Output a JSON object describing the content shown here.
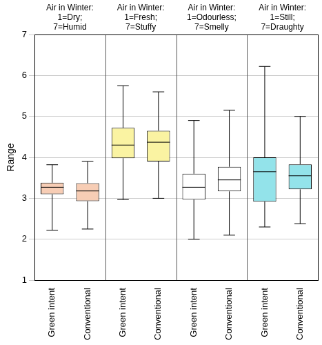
{
  "chart_data": {
    "type": "boxplot",
    "y_label": "Range",
    "ylim": [
      1,
      7
    ],
    "yticks": [
      1,
      2,
      3,
      4,
      5,
      6,
      7
    ],
    "grid": true,
    "categories": [
      "Green intent",
      "Conventional",
      "Green intent",
      "Conventional",
      "Green intent",
      "Conventional",
      "Green intent",
      "Conventional"
    ],
    "panels": [
      {
        "title": [
          "Air in Winter:",
          "1=Dry;",
          "7=Humid"
        ],
        "color": "#f7cdb5",
        "min": [
          2.22,
          2.25
        ],
        "q1": [
          3.1,
          2.93
        ],
        "median": [
          3.27,
          3.18
        ],
        "q3": [
          3.38,
          3.37
        ],
        "max": [
          3.82,
          3.9
        ]
      },
      {
        "title": [
          "Air in Winter:",
          "1=Fresh;",
          "7=Stuffy"
        ],
        "color": "#faf3a2",
        "min": [
          2.97,
          3.0
        ],
        "q1": [
          3.98,
          3.9
        ],
        "median": [
          4.3,
          4.37
        ],
        "q3": [
          4.72,
          4.65
        ],
        "max": [
          5.75,
          5.6
        ]
      },
      {
        "title": [
          "Air in Winter:",
          "1=Odourless;",
          "7=Smelly"
        ],
        "color": "#ffffff",
        "min": [
          2.0,
          2.1
        ],
        "q1": [
          2.97,
          3.17
        ],
        "median": [
          3.27,
          3.45
        ],
        "q3": [
          3.6,
          3.77
        ],
        "max": [
          4.9,
          5.15
        ]
      },
      {
        "title": [
          "Air in Winter:",
          "1=Still;",
          "7=Draughty"
        ],
        "color": "#93e3ea",
        "min": [
          2.3,
          2.38
        ],
        "q1": [
          2.92,
          3.22
        ],
        "median": [
          3.65,
          3.55
        ],
        "q3": [
          4.0,
          3.83
        ],
        "max": [
          6.22,
          5.0
        ]
      }
    ]
  }
}
